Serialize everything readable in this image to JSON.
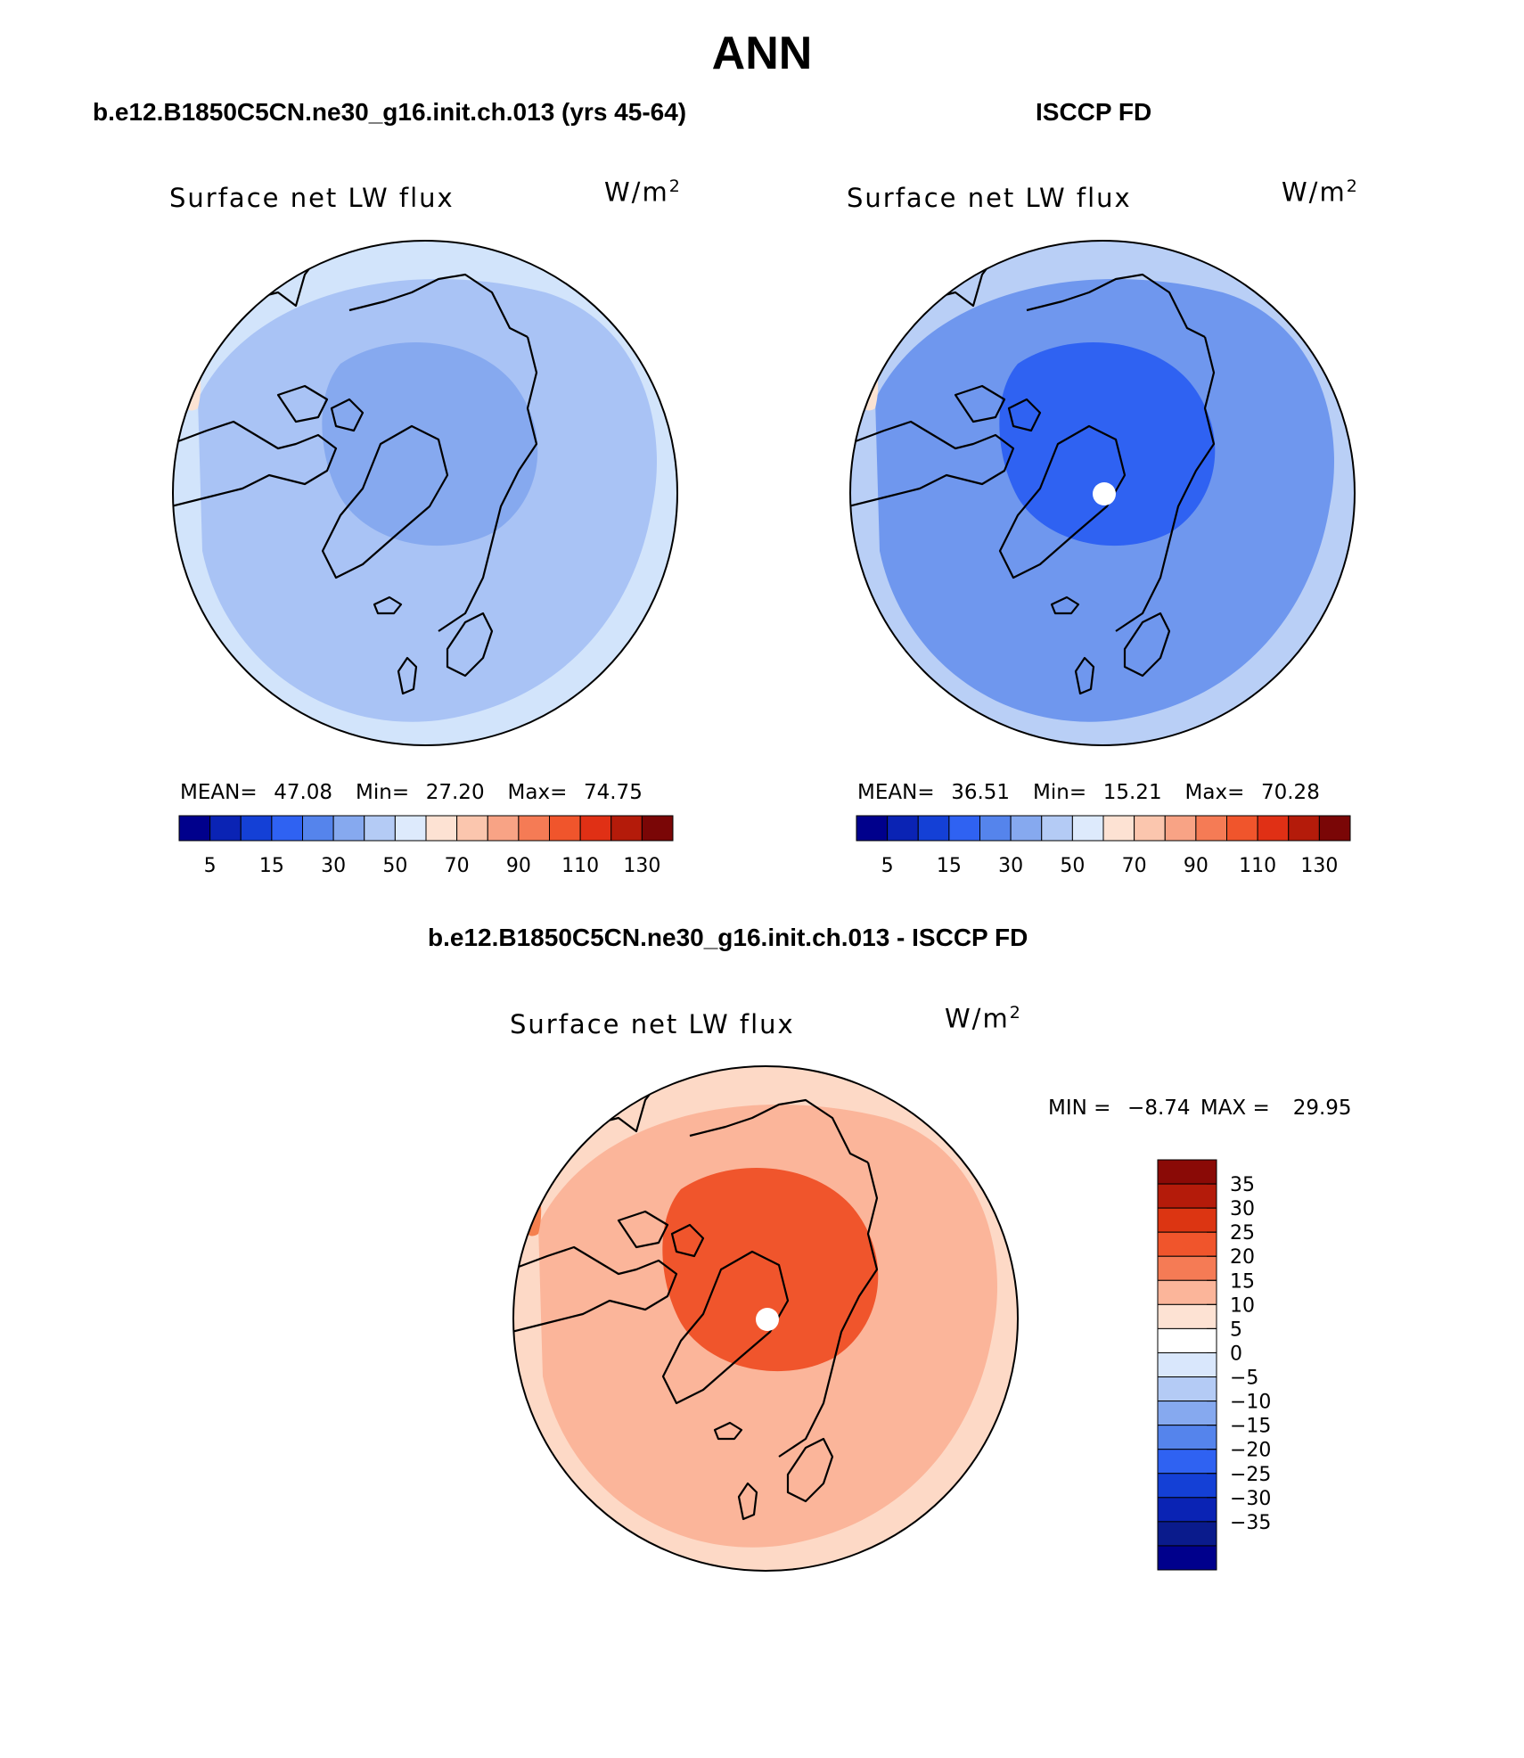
{
  "title": "ANN",
  "panels": [
    {
      "case_title": "b.e12.B1850C5CN.ne30_g16.init.ch.013 (yrs 45-64)",
      "field_label": "Surface net LW flux",
      "units": "W/m",
      "units_exp": "2",
      "stats": {
        "mean_label": "MEAN=",
        "mean": "47.08",
        "min_label": "Min=",
        "min": "27.20",
        "max_label": "Max=",
        "max": "74.75"
      },
      "map_fill": {
        "base": "#a9c3f5",
        "pole": "#86a9ef",
        "outer": "#d2e4fb",
        "warm": "#fbe3d3"
      }
    },
    {
      "case_title": "ISCCP FD",
      "field_label": "Surface net LW flux",
      "units": "W/m",
      "units_exp": "2",
      "stats": {
        "mean_label": "MEAN=",
        "mean": "36.51",
        "min_label": "Min=",
        "min": "15.21",
        "max_label": "Max=",
        "max": "70.28"
      },
      "map_fill": {
        "base": "#6f97ee",
        "pole": "#2f62f2",
        "outer": "#b9cff6",
        "warm": "#fbe3d3"
      }
    },
    {
      "case_title": "b.e12.B1850C5CN.ne30_g16.init.ch.013 - ISCCP FD",
      "field_label": "Surface net LW flux",
      "units": "W/m",
      "units_exp": "2",
      "stats_text": {
        "min_label": "MIN =",
        "min": "−8.74",
        "max_label": "MAX =",
        "max": "29.95"
      },
      "map_fill": {
        "base": "#fbb59a",
        "pole": "#f0552c",
        "outer": "#fdd9c6",
        "warm": "#f5804f"
      }
    }
  ],
  "colorbar_abs": {
    "colors": [
      "#00008c",
      "#0a23b4",
      "#1440d6",
      "#2f62f2",
      "#5584ec",
      "#86a9ef",
      "#b4cbf5",
      "#ddeafc",
      "#fde2d3",
      "#fbc6ae",
      "#f8a385",
      "#f57b55",
      "#f0552c",
      "#e03015",
      "#b41b0a",
      "#7a0606"
    ],
    "tick_labels": [
      "5",
      "15",
      "30",
      "50",
      "70",
      "90",
      "110",
      "130"
    ]
  },
  "colorbar_diff": {
    "colors_top_to_bottom": [
      "#8a0a06",
      "#b41b0a",
      "#dc3512",
      "#f0552c",
      "#f57b55",
      "#fbb59a",
      "#fde2d3",
      "#ffffff",
      "#d9e7fc",
      "#b4cbf5",
      "#86a9ef",
      "#5584ec",
      "#2f62f2",
      "#1440d6",
      "#0a23b4",
      "#0a1b8c",
      "#00008c"
    ],
    "tick_labels_top_to_bottom": [
      "35",
      "30",
      "25",
      "20",
      "15",
      "10",
      "5",
      "0",
      "−5",
      "−10",
      "−15",
      "−20",
      "−25",
      "−30",
      "−35"
    ]
  }
}
